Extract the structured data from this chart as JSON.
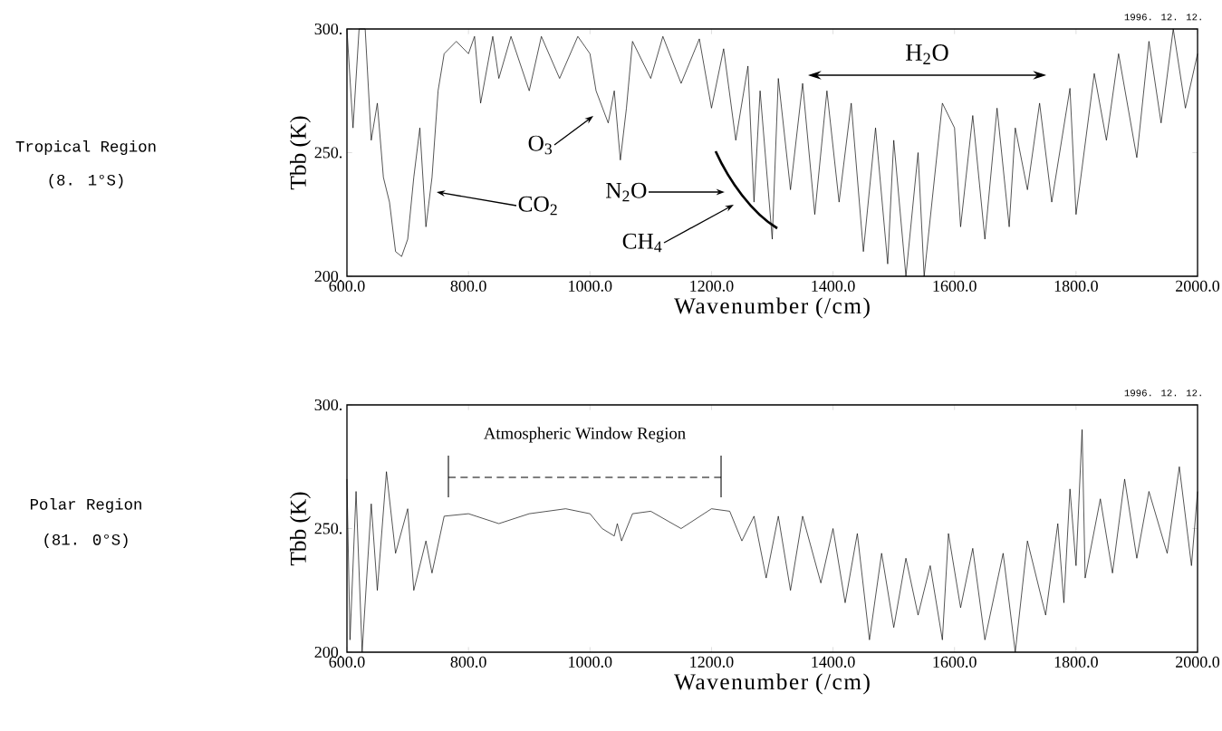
{
  "chart_data": [
    {
      "type": "line",
      "xlabel": "Wavenumber (/cm)",
      "ylabel": "Tbb (K)",
      "xlim": [
        600,
        2000
      ],
      "ylim": [
        200,
        300
      ],
      "xticks": [
        {
          "value": 600,
          "label": "600.0"
        },
        {
          "value": 800,
          "label": "800.0"
        },
        {
          "value": 1000,
          "label": "1000.0"
        },
        {
          "value": 1200,
          "label": "1200.0"
        },
        {
          "value": 1400,
          "label": "1400.0"
        },
        {
          "value": 1600,
          "label": "1600.0"
        },
        {
          "value": 1800,
          "label": "1800.0"
        },
        {
          "value": 2000,
          "label": "2000.0"
        }
      ],
      "yticks": [
        {
          "value": 200,
          "label": "200."
        },
        {
          "value": 250,
          "label": "250."
        },
        {
          "value": 300,
          "label": "300."
        }
      ],
      "series": [
        {
          "color": "#000000",
          "x": [
            600,
            610,
            620,
            630,
            640,
            650,
            660,
            670,
            680,
            690,
            700,
            710,
            720,
            730,
            740,
            750,
            760,
            780,
            800,
            810,
            820,
            840,
            850,
            870,
            900,
            920,
            950,
            980,
            1000,
            1010,
            1030,
            1040,
            1050,
            1060,
            1070,
            1100,
            1120,
            1150,
            1180,
            1200,
            1220,
            1240,
            1260,
            1270,
            1280,
            1300,
            1310,
            1330,
            1350,
            1370,
            1390,
            1410,
            1430,
            1450,
            1470,
            1490,
            1500,
            1520,
            1540,
            1550,
            1580,
            1600,
            1610,
            1630,
            1650,
            1670,
            1690,
            1700,
            1720,
            1740,
            1760,
            1790,
            1800,
            1830,
            1850,
            1870,
            1900,
            1920,
            1940,
            1960,
            1980,
            2000
          ],
          "values": [
            300,
            260,
            300,
            300,
            255,
            270,
            240,
            230,
            210,
            208,
            215,
            240,
            260,
            220,
            240,
            275,
            290,
            295,
            290,
            297,
            270,
            297,
            280,
            297,
            275,
            297,
            280,
            297,
            290,
            275,
            262,
            275,
            247,
            268,
            295,
            280,
            297,
            278,
            296,
            268,
            292,
            255,
            285,
            230,
            275,
            215,
            280,
            235,
            278,
            225,
            275,
            230,
            270,
            210,
            260,
            205,
            255,
            200,
            250,
            200,
            270,
            260,
            220,
            265,
            215,
            268,
            220,
            260,
            235,
            270,
            230,
            276,
            225,
            282,
            255,
            290,
            248,
            295,
            262,
            300,
            268,
            290
          ]
        }
      ],
      "annotations": [
        "Tropical Region",
        "(8. 1°S)",
        "1996. 12. 12.",
        "CO$_{2}$",
        "O$_{3}$",
        "N$_{2}$O",
        "CH$_{4}$",
        "H$_{2}$O"
      ]
    },
    {
      "type": "line",
      "xlabel": "Wavenumber (/cm)",
      "ylabel": "Tbb (K)",
      "xlim": [
        600,
        2000
      ],
      "ylim": [
        200,
        300
      ],
      "xticks": [
        {
          "value": 600,
          "label": "600.0"
        },
        {
          "value": 800,
          "label": "800.0"
        },
        {
          "value": 1000,
          "label": "1000.0"
        },
        {
          "value": 1200,
          "label": "1200.0"
        },
        {
          "value": 1400,
          "label": "1400.0"
        },
        {
          "value": 1600,
          "label": "1600.0"
        },
        {
          "value": 1800,
          "label": "1800.0"
        },
        {
          "value": 2000,
          "label": "2000.0"
        }
      ],
      "yticks": [
        {
          "value": 200,
          "label": "200."
        },
        {
          "value": 250,
          "label": "250."
        },
        {
          "value": 300,
          "label": "300."
        }
      ],
      "series": [
        {
          "color": "#000000",
          "x": [
            600,
            605,
            615,
            625,
            640,
            650,
            665,
            680,
            700,
            710,
            730,
            740,
            760,
            800,
            850,
            900,
            960,
            1000,
            1020,
            1040,
            1045,
            1052,
            1070,
            1100,
            1150,
            1200,
            1230,
            1250,
            1270,
            1290,
            1310,
            1330,
            1350,
            1380,
            1400,
            1420,
            1440,
            1460,
            1480,
            1500,
            1520,
            1540,
            1560,
            1580,
            1590,
            1610,
            1630,
            1650,
            1680,
            1700,
            1720,
            1750,
            1770,
            1780,
            1790,
            1800,
            1810,
            1815,
            1840,
            1860,
            1880,
            1900,
            1920,
            1950,
            1970,
            1990,
            2000
          ],
          "values": [
            270,
            205,
            265,
            200,
            260,
            225,
            273,
            240,
            258,
            225,
            245,
            232,
            255,
            256,
            252,
            256,
            258,
            256,
            250,
            247,
            252,
            245,
            256,
            257,
            250,
            258,
            257,
            245,
            255,
            230,
            255,
            225,
            255,
            228,
            250,
            220,
            248,
            205,
            240,
            210,
            238,
            215,
            235,
            205,
            248,
            218,
            242,
            205,
            240,
            200,
            245,
            215,
            252,
            220,
            266,
            235,
            290,
            230,
            262,
            232,
            270,
            238,
            265,
            240,
            275,
            235,
            265
          ]
        }
      ],
      "annotations": [
        "Polar Region",
        "(81. 0°S)",
        "1996. 12. 12.",
        "Atmospheric Window Region"
      ]
    }
  ]
}
